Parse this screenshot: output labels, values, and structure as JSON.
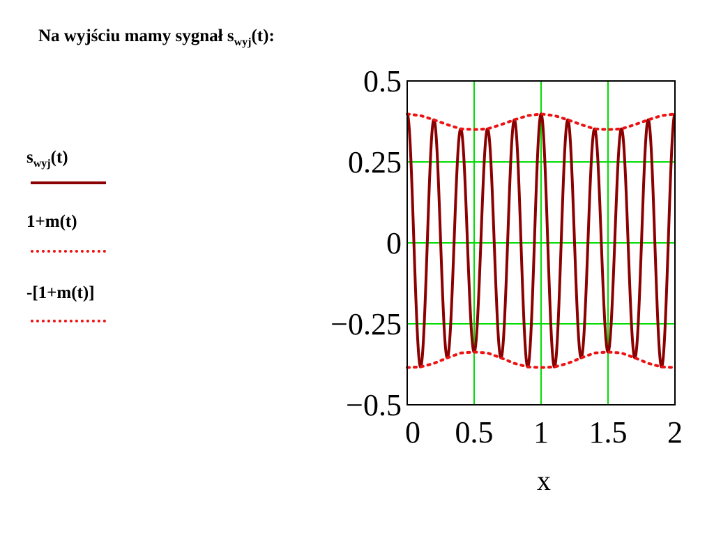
{
  "header": {
    "title_main": "Na wyjściu mamy sygnał s",
    "title_sub": "wyj",
    "title_tail": "(t):"
  },
  "legend": {
    "items": [
      {
        "main": "s",
        "sub": "wyj",
        "tail": "(t)",
        "style": "solid"
      },
      {
        "main": "1+m(t)",
        "sub": "",
        "tail": "",
        "style": "dotted"
      },
      {
        "main": "-[1+m(t)]",
        "sub": "",
        "tail": "",
        "style": "dotted"
      }
    ]
  },
  "colors": {
    "signal": "#8b0000",
    "envelope": "#ee1111",
    "grid": "#00dd00",
    "frame": "#000000"
  },
  "chart_data": {
    "type": "line",
    "xlabel": "x",
    "ylabel": "",
    "xlim": [
      0,
      2
    ],
    "ylim": [
      -0.5,
      0.5
    ],
    "x_ticks": [
      "0",
      "0.5",
      "1",
      "1.5",
      "2"
    ],
    "y_ticks": [
      "0.5",
      "0.25",
      "0",
      "−0.25",
      "−0.5"
    ],
    "grid": true,
    "series": [
      {
        "name": "swyj(t)",
        "style": "solid",
        "x": [
          0,
          0.05,
          0.1,
          0.15,
          0.2,
          0.25,
          0.3,
          0.35,
          0.4,
          0.45,
          0.5,
          0.55,
          0.6,
          0.65,
          0.7,
          0.75,
          0.8,
          0.85,
          0.9,
          0.95,
          1.0,
          1.05,
          1.1,
          1.15,
          1.2,
          1.25,
          1.3,
          1.35,
          1.4,
          1.45,
          1.5,
          1.55,
          1.6,
          1.65,
          1.7,
          1.75,
          1.8,
          1.85,
          1.9,
          1.95,
          2.0
        ],
        "y": [
          0.39,
          -0.0,
          -0.385,
          0.0,
          0.368,
          -0.0,
          -0.35,
          0.0,
          0.343,
          -0.0,
          -0.345,
          0.0,
          0.355,
          -0.0,
          -0.372,
          0.0,
          0.386,
          -0.0,
          -0.393,
          0.0,
          0.39,
          -0.0,
          -0.38,
          0.0,
          0.365,
          -0.0,
          -0.35,
          0.0,
          0.342,
          -0.0,
          -0.345,
          0.0,
          0.355,
          -0.0,
          -0.372,
          0.0,
          0.386,
          -0.0,
          -0.393,
          0.0,
          0.39
        ]
      },
      {
        "name": "1+m(t)",
        "style": "dotted",
        "x": [
          0,
          0.1,
          0.2,
          0.3,
          0.4,
          0.5,
          0.6,
          0.7,
          0.8,
          0.9,
          1.0,
          1.1,
          1.2,
          1.3,
          1.4,
          1.5,
          1.6,
          1.7,
          1.8,
          1.9,
          2.0
        ],
        "y": [
          0.398,
          0.393,
          0.38,
          0.365,
          0.352,
          0.35,
          0.352,
          0.365,
          0.38,
          0.393,
          0.398,
          0.393,
          0.38,
          0.365,
          0.352,
          0.35,
          0.352,
          0.365,
          0.38,
          0.393,
          0.398
        ]
      },
      {
        "name": "-[1+m(t)]",
        "style": "dotted",
        "x": [
          0,
          0.1,
          0.2,
          0.3,
          0.4,
          0.5,
          0.6,
          0.7,
          0.8,
          0.9,
          1.0,
          1.1,
          1.2,
          1.3,
          1.4,
          1.5,
          1.6,
          1.7,
          1.8,
          1.9,
          2.0
        ],
        "y": [
          -0.385,
          -0.383,
          -0.372,
          -0.355,
          -0.34,
          -0.337,
          -0.34,
          -0.355,
          -0.372,
          -0.383,
          -0.385,
          -0.383,
          -0.372,
          -0.355,
          -0.34,
          -0.337,
          -0.34,
          -0.355,
          -0.372,
          -0.383,
          -0.385
        ]
      }
    ]
  }
}
